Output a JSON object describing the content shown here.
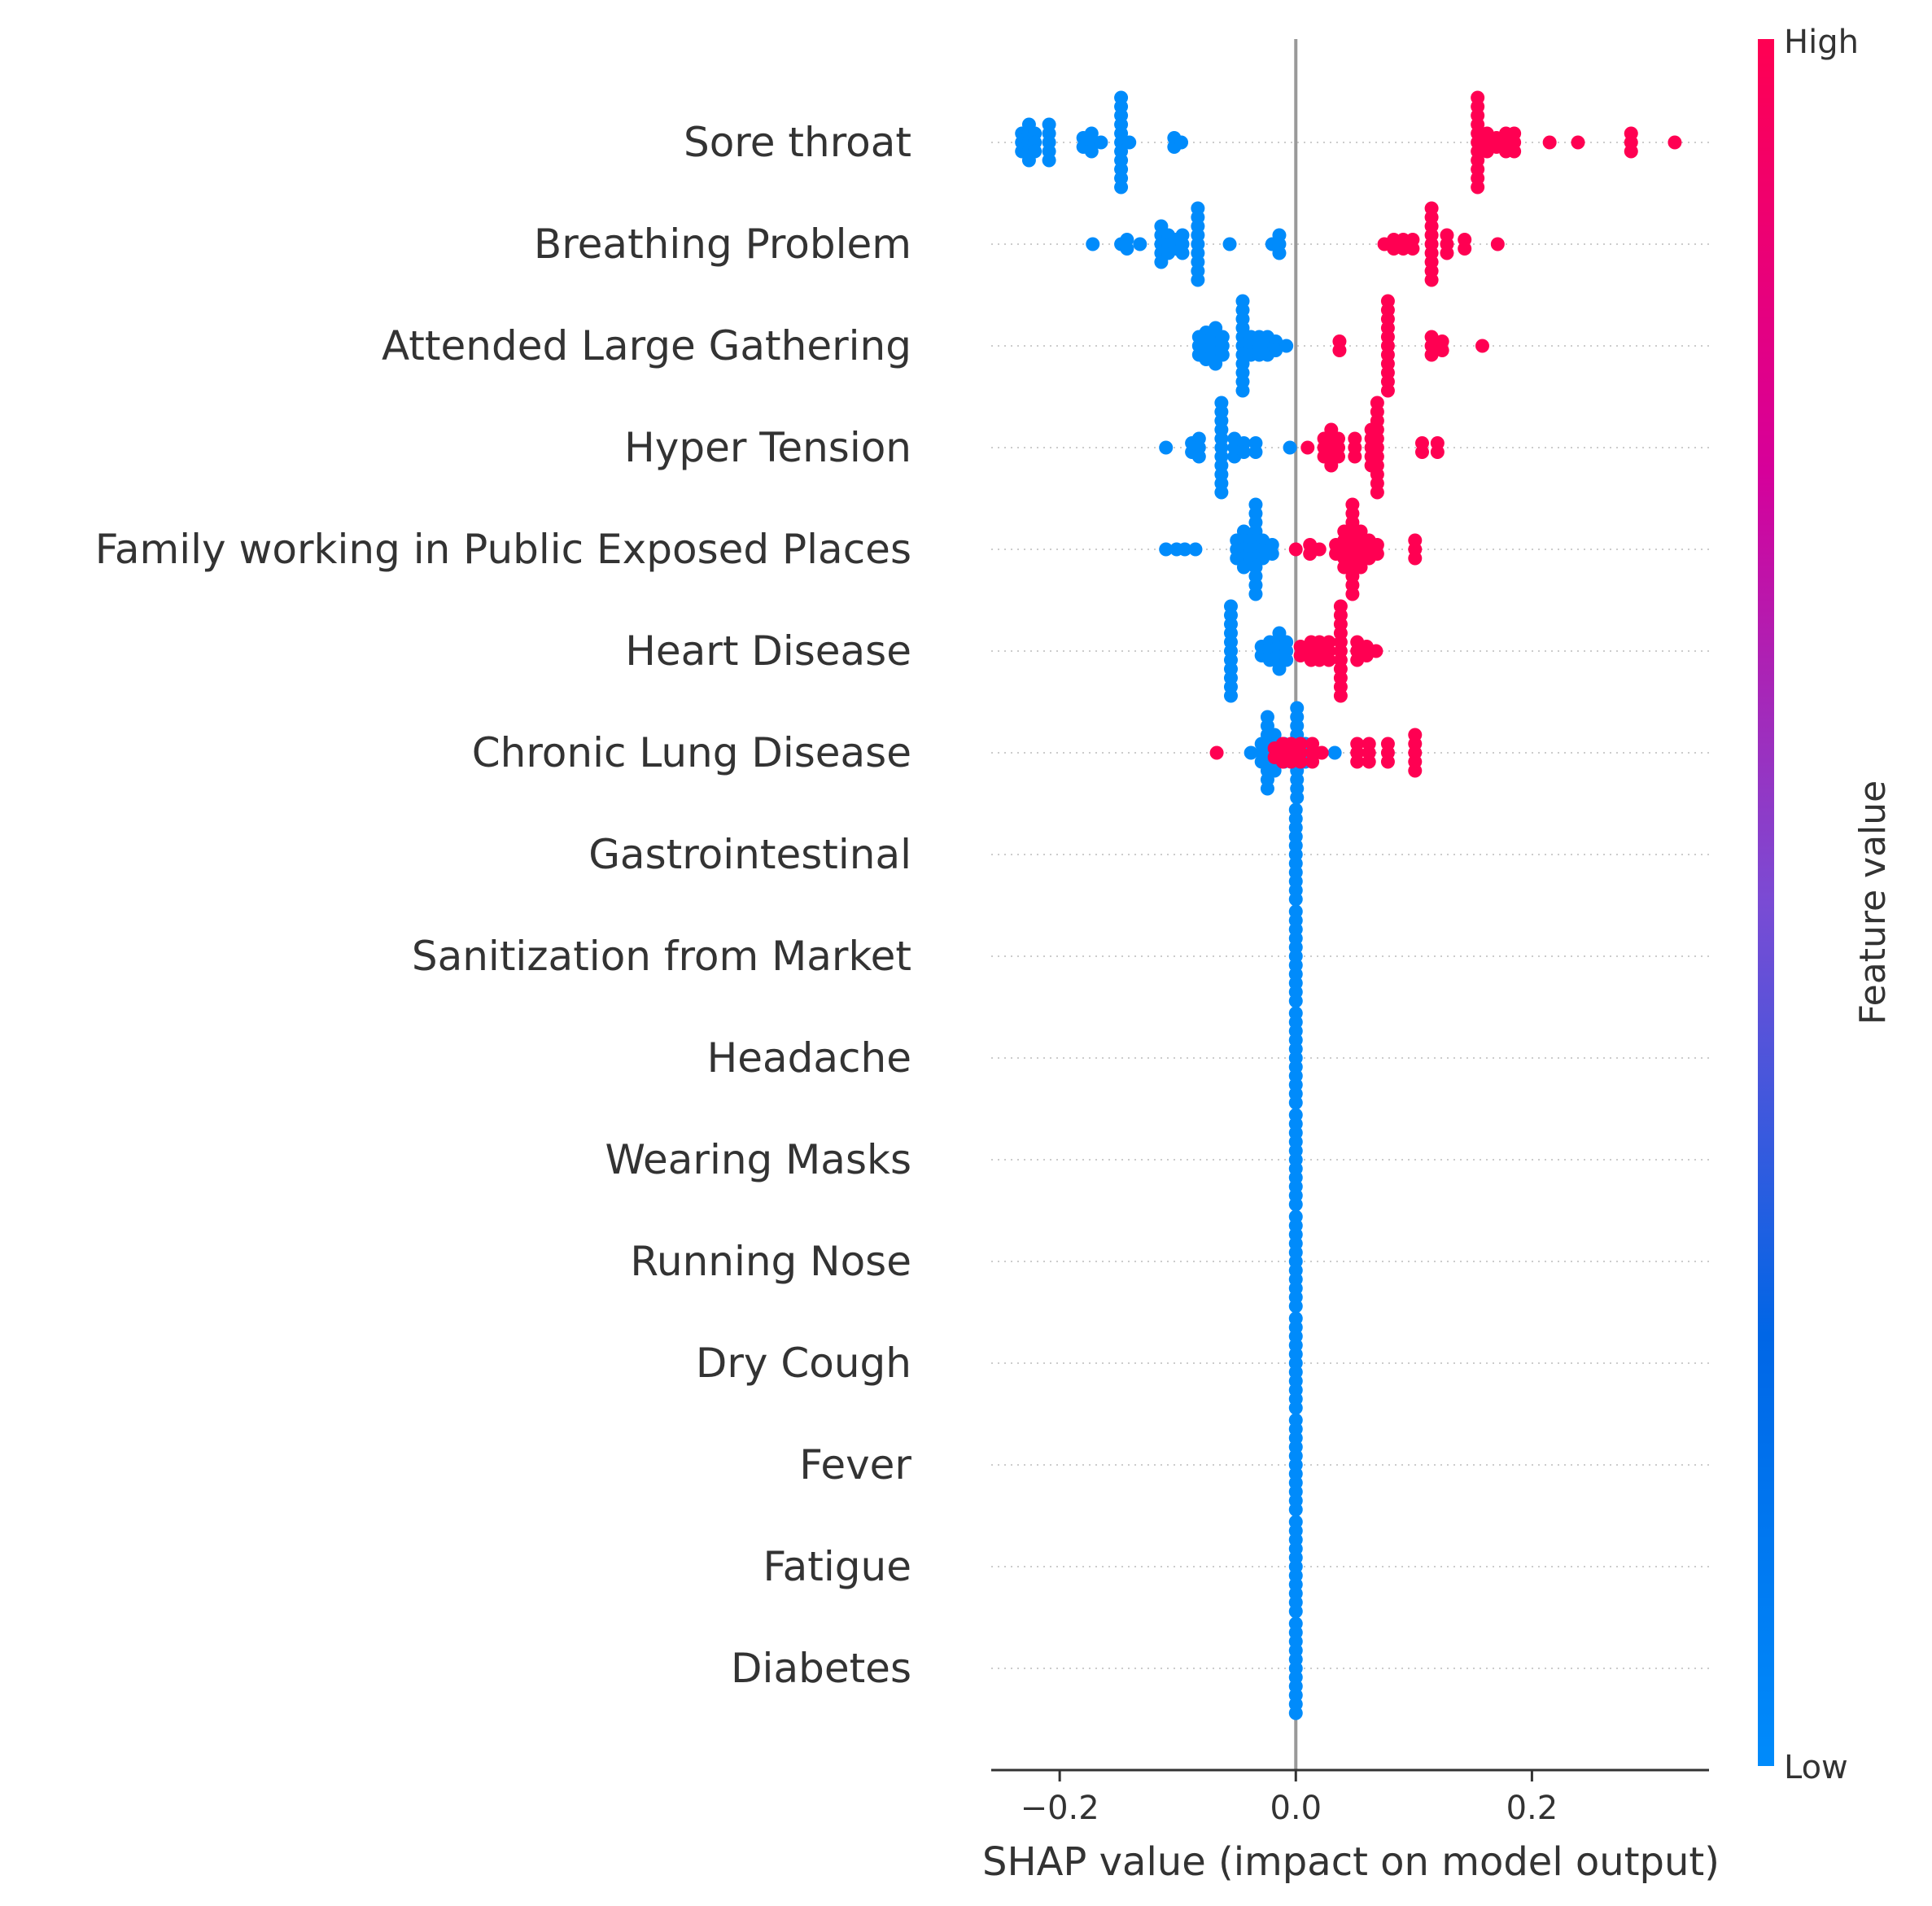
{
  "chart_data": {
    "type": "scatter",
    "subtype": "shap-beeswarm",
    "title": "",
    "xlabel": "SHAP value (impact on model output)",
    "ylabel": "",
    "xlim": [
      -0.258,
      0.35
    ],
    "xticks": [
      -0.2,
      0.0,
      0.2
    ],
    "xtick_labels": [
      "−0.2",
      "0.0",
      "0.2"
    ],
    "grid": false,
    "zero_line": true,
    "colorbar": {
      "title": "Feature value",
      "high_label": "High",
      "low_label": "Low",
      "low_color": "#008bfb",
      "high_color": "#ff0052"
    },
    "features": [
      {
        "name": "Sore throat",
        "low": [
          {
            "x": -0.232,
            "n": 3
          },
          {
            "x": -0.226,
            "n": 5
          },
          {
            "x": -0.221,
            "n": 3
          },
          {
            "x": -0.209,
            "n": 5
          },
          {
            "x": -0.18,
            "n": 2
          },
          {
            "x": -0.173,
            "n": 3
          },
          {
            "x": -0.165,
            "n": 1
          },
          {
            "x": -0.148,
            "n": 11
          },
          {
            "x": -0.141,
            "n": 1
          },
          {
            "x": -0.103,
            "n": 2
          },
          {
            "x": -0.097,
            "n": 1
          }
        ],
        "high": [
          {
            "x": 0.154,
            "n": 11
          },
          {
            "x": 0.162,
            "n": 3
          },
          {
            "x": 0.17,
            "n": 2
          },
          {
            "x": 0.178,
            "n": 3
          },
          {
            "x": 0.185,
            "n": 3
          },
          {
            "x": 0.215,
            "n": 1
          },
          {
            "x": 0.239,
            "n": 1
          },
          {
            "x": 0.284,
            "n": 3
          },
          {
            "x": 0.321,
            "n": 1
          }
        ]
      },
      {
        "name": "Breathing Problem",
        "low": [
          {
            "x": -0.172,
            "n": 1
          },
          {
            "x": -0.148,
            "n": 1
          },
          {
            "x": -0.143,
            "n": 2
          },
          {
            "x": -0.132,
            "n": 1
          },
          {
            "x": -0.114,
            "n": 5
          },
          {
            "x": -0.108,
            "n": 3
          },
          {
            "x": -0.102,
            "n": 2
          },
          {
            "x": -0.096,
            "n": 3
          },
          {
            "x": -0.083,
            "n": 9
          },
          {
            "x": -0.056,
            "n": 1
          },
          {
            "x": -0.02,
            "n": 1
          },
          {
            "x": -0.014,
            "n": 3
          }
        ],
        "high": [
          {
            "x": 0.075,
            "n": 1
          },
          {
            "x": 0.083,
            "n": 2
          },
          {
            "x": 0.091,
            "n": 2
          },
          {
            "x": 0.099,
            "n": 2
          },
          {
            "x": 0.115,
            "n": 9
          },
          {
            "x": 0.128,
            "n": 3
          },
          {
            "x": 0.143,
            "n": 2
          },
          {
            "x": 0.171,
            "n": 1
          }
        ]
      },
      {
        "name": "Attended Large Gathering",
        "low": [
          {
            "x": -0.082,
            "n": 3
          },
          {
            "x": -0.076,
            "n": 4
          },
          {
            "x": -0.068,
            "n": 5
          },
          {
            "x": -0.062,
            "n": 3
          },
          {
            "x": -0.045,
            "n": 11
          },
          {
            "x": -0.038,
            "n": 3
          },
          {
            "x": -0.031,
            "n": 3
          },
          {
            "x": -0.024,
            "n": 3
          },
          {
            "x": -0.017,
            "n": 2
          },
          {
            "x": -0.008,
            "n": 1
          }
        ],
        "high": [
          {
            "x": 0.037,
            "n": 2
          },
          {
            "x": 0.078,
            "n": 11
          },
          {
            "x": 0.115,
            "n": 3
          },
          {
            "x": 0.124,
            "n": 2
          },
          {
            "x": 0.158,
            "n": 1
          }
        ]
      },
      {
        "name": "Hyper Tension",
        "low": [
          {
            "x": -0.11,
            "n": 1
          },
          {
            "x": -0.088,
            "n": 2
          },
          {
            "x": -0.082,
            "n": 3
          },
          {
            "x": -0.063,
            "n": 11
          },
          {
            "x": -0.052,
            "n": 3
          },
          {
            "x": -0.044,
            "n": 2
          },
          {
            "x": -0.034,
            "n": 2
          },
          {
            "x": -0.005,
            "n": 1
          }
        ],
        "high": [
          {
            "x": 0.01,
            "n": 1
          },
          {
            "x": 0.024,
            "n": 3
          },
          {
            "x": 0.03,
            "n": 5
          },
          {
            "x": 0.036,
            "n": 3
          },
          {
            "x": 0.05,
            "n": 3
          },
          {
            "x": 0.064,
            "n": 5
          },
          {
            "x": 0.069,
            "n": 11
          },
          {
            "x": 0.107,
            "n": 2
          },
          {
            "x": 0.12,
            "n": 2
          }
        ]
      },
      {
        "name": "Family working in Public Exposed Places",
        "low": [
          {
            "x": -0.11,
            "n": 1
          },
          {
            "x": -0.101,
            "n": 1
          },
          {
            "x": -0.094,
            "n": 1
          },
          {
            "x": -0.085,
            "n": 1
          },
          {
            "x": -0.05,
            "n": 3
          },
          {
            "x": -0.044,
            "n": 5
          },
          {
            "x": -0.039,
            "n": 3
          },
          {
            "x": -0.034,
            "n": 11
          },
          {
            "x": -0.028,
            "n": 3
          },
          {
            "x": -0.02,
            "n": 2
          }
        ],
        "high": [
          {
            "x": 0.0,
            "n": 1
          },
          {
            "x": 0.012,
            "n": 2
          },
          {
            "x": 0.02,
            "n": 1
          },
          {
            "x": 0.034,
            "n": 2
          },
          {
            "x": 0.041,
            "n": 5
          },
          {
            "x": 0.048,
            "n": 11
          },
          {
            "x": 0.055,
            "n": 5
          },
          {
            "x": 0.062,
            "n": 3
          },
          {
            "x": 0.069,
            "n": 2
          },
          {
            "x": 0.101,
            "n": 3
          }
        ]
      },
      {
        "name": "Heart Disease",
        "low": [
          {
            "x": -0.055,
            "n": 11
          },
          {
            "x": -0.029,
            "n": 2
          },
          {
            "x": -0.022,
            "n": 3
          },
          {
            "x": -0.014,
            "n": 5
          },
          {
            "x": -0.008,
            "n": 3
          }
        ],
        "high": [
          {
            "x": 0.004,
            "n": 2
          },
          {
            "x": 0.013,
            "n": 3
          },
          {
            "x": 0.02,
            "n": 3
          },
          {
            "x": 0.028,
            "n": 3
          },
          {
            "x": 0.038,
            "n": 11
          },
          {
            "x": 0.052,
            "n": 3
          },
          {
            "x": 0.06,
            "n": 2
          },
          {
            "x": 0.068,
            "n": 1
          }
        ]
      },
      {
        "name": "Chronic Lung Disease",
        "low": [
          {
            "x": -0.038,
            "n": 1
          },
          {
            "x": -0.029,
            "n": 3
          },
          {
            "x": -0.024,
            "n": 9
          },
          {
            "x": -0.018,
            "n": 5
          },
          {
            "x": -0.01,
            "n": 3
          },
          {
            "x": -0.003,
            "n": 3
          },
          {
            "x": 0.001,
            "n": 11
          },
          {
            "x": 0.008,
            "n": 3
          },
          {
            "x": 0.033,
            "n": 1
          }
        ],
        "high": [
          {
            "x": -0.067,
            "n": 1
          },
          {
            "x": -0.018,
            "n": 2
          },
          {
            "x": -0.011,
            "n": 3
          },
          {
            "x": -0.004,
            "n": 3
          },
          {
            "x": 0.004,
            "n": 3
          },
          {
            "x": 0.014,
            "n": 3
          },
          {
            "x": 0.022,
            "n": 1
          },
          {
            "x": 0.052,
            "n": 3
          },
          {
            "x": 0.062,
            "n": 3
          },
          {
            "x": 0.078,
            "n": 3
          },
          {
            "x": 0.101,
            "n": 5
          }
        ]
      },
      {
        "name": "Gastrointestinal ",
        "low": [
          {
            "x": 0.0,
            "n": 11
          }
        ],
        "high": []
      },
      {
        "name": "Sanitization from Market",
        "low": [
          {
            "x": 0.0,
            "n": 11
          }
        ],
        "high": []
      },
      {
        "name": "Headache",
        "low": [
          {
            "x": 0.0,
            "n": 11
          }
        ],
        "high": []
      },
      {
        "name": "Wearing Masks",
        "low": [
          {
            "x": 0.0,
            "n": 11
          }
        ],
        "high": []
      },
      {
        "name": "Running Nose",
        "low": [
          {
            "x": 0.0,
            "n": 11
          }
        ],
        "high": []
      },
      {
        "name": "Dry Cough",
        "low": [
          {
            "x": 0.0,
            "n": 11
          }
        ],
        "high": []
      },
      {
        "name": "Fever",
        "low": [
          {
            "x": 0.0,
            "n": 11
          }
        ],
        "high": []
      },
      {
        "name": "Fatigue ",
        "low": [
          {
            "x": 0.0,
            "n": 11
          }
        ],
        "high": []
      },
      {
        "name": "Diabetes",
        "low": [
          {
            "x": 0.0,
            "n": 11
          }
        ],
        "high": []
      }
    ]
  }
}
